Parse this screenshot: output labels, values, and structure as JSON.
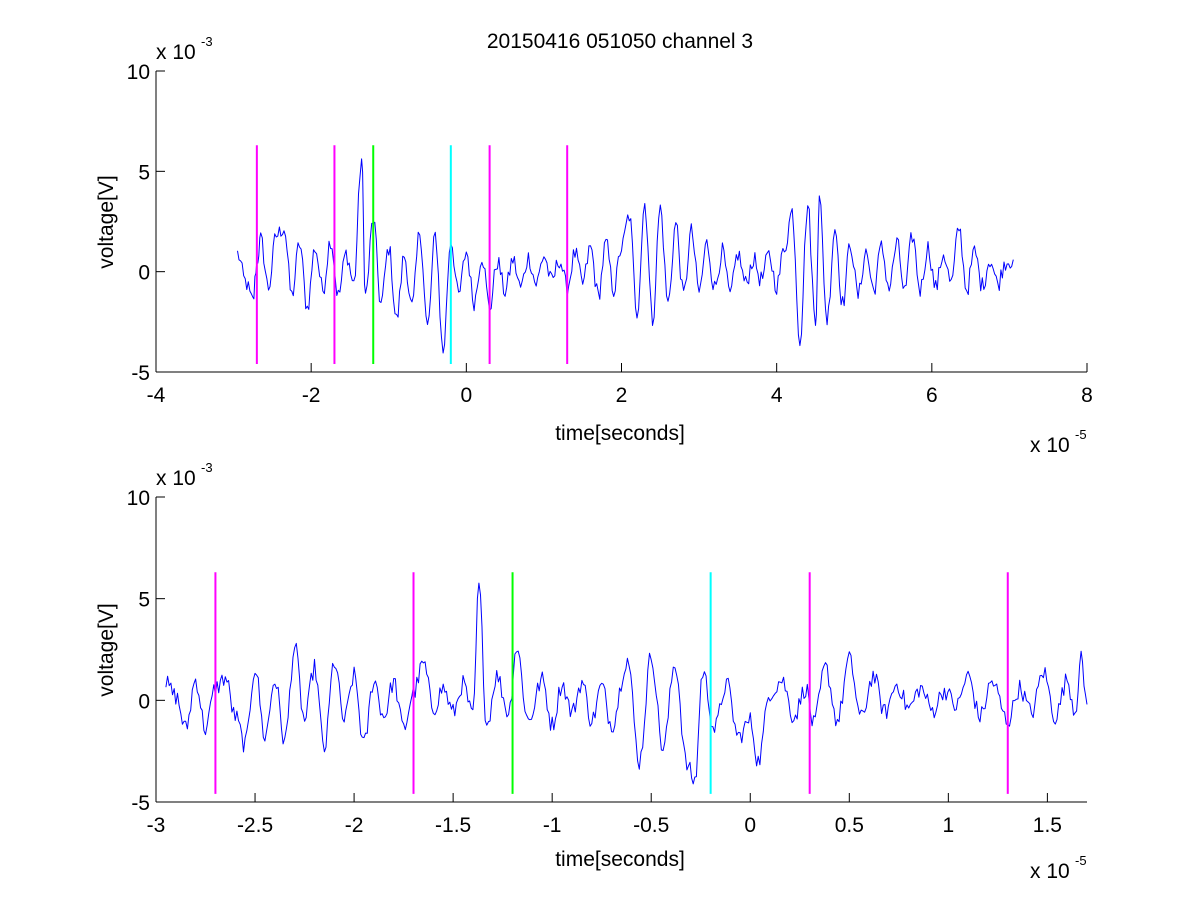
{
  "chart_data": [
    {
      "type": "line",
      "title": "20150416 051050 channel 3",
      "xlabel": "time[seconds]",
      "ylabel": "voltage[V]",
      "x_exponent": "x 10",
      "x_exponent_power": "-5",
      "y_exponent": "x 10",
      "y_exponent_power": "-3",
      "xlim": [
        -4,
        8
      ],
      "ylim": [
        -5,
        10
      ],
      "x_ticks": [
        -4,
        -2,
        0,
        2,
        4,
        6,
        8
      ],
      "x_tick_labels": [
        "-4",
        "-2",
        "0",
        "2",
        "4",
        "6",
        "8"
      ],
      "y_ticks": [
        -5,
        0,
        5,
        10
      ],
      "y_tick_labels": [
        "-5",
        "0",
        "5",
        "10"
      ],
      "grid": false,
      "box": "open",
      "series": [
        {
          "color": "#0000ff",
          "x_range": [
            -2.95,
            7.05
          ],
          "points": [
            [
              -2.95,
              0.9
            ],
            [
              -2.85,
              -0.5
            ],
            [
              -2.75,
              -1.5
            ],
            [
              -2.7,
              0.5
            ],
            [
              -2.65,
              1.6
            ],
            [
              -2.55,
              -0.8
            ],
            [
              -2.45,
              1.8
            ],
            [
              -2.35,
              2.2
            ],
            [
              -2.25,
              -1.2
            ],
            [
              -2.15,
              1.4
            ],
            [
              -2.05,
              -1.8
            ],
            [
              -1.95,
              1.2
            ],
            [
              -1.85,
              -0.9
            ],
            [
              -1.75,
              1.6
            ],
            [
              -1.65,
              -1.2
            ],
            [
              -1.55,
              0.9
            ],
            [
              -1.45,
              -0.6
            ],
            [
              -1.35,
              5.6
            ],
            [
              -1.3,
              -1.2
            ],
            [
              -1.2,
              2.6
            ],
            [
              -1.1,
              -1.6
            ],
            [
              -1.0,
              1.2
            ],
            [
              -0.9,
              -2.4
            ],
            [
              -0.8,
              0.8
            ],
            [
              -0.7,
              -1.8
            ],
            [
              -0.6,
              2.0
            ],
            [
              -0.5,
              -2.8
            ],
            [
              -0.4,
              1.8
            ],
            [
              -0.3,
              -4.0
            ],
            [
              -0.2,
              1.6
            ],
            [
              -0.1,
              -1.2
            ],
            [
              0.0,
              1.0
            ],
            [
              0.1,
              -1.5
            ],
            [
              0.2,
              0.8
            ],
            [
              0.3,
              -1.8
            ],
            [
              0.4,
              0.5
            ],
            [
              0.5,
              -1.0
            ],
            [
              0.6,
              0.6
            ],
            [
              0.7,
              -0.8
            ],
            [
              0.8,
              0.7
            ],
            [
              0.9,
              -0.6
            ],
            [
              1.0,
              0.8
            ],
            [
              1.1,
              -0.5
            ],
            [
              1.2,
              0.6
            ],
            [
              1.3,
              -0.8
            ],
            [
              1.4,
              0.9
            ],
            [
              1.5,
              -0.6
            ],
            [
              1.6,
              1.2
            ],
            [
              1.7,
              -1.2
            ],
            [
              1.8,
              1.4
            ],
            [
              1.9,
              -0.9
            ],
            [
              2.0,
              1.2
            ],
            [
              2.1,
              2.8
            ],
            [
              2.2,
              -2.0
            ],
            [
              2.3,
              3.4
            ],
            [
              2.4,
              -2.4
            ],
            [
              2.5,
              3.2
            ],
            [
              2.6,
              -1.6
            ],
            [
              2.7,
              2.4
            ],
            [
              2.8,
              -1.2
            ],
            [
              2.9,
              2.0
            ],
            [
              3.0,
              -1.0
            ],
            [
              3.1,
              1.4
            ],
            [
              3.2,
              -0.8
            ],
            [
              3.3,
              1.0
            ],
            [
              3.4,
              -1.2
            ],
            [
              3.5,
              0.9
            ],
            [
              3.6,
              -0.6
            ],
            [
              3.7,
              0.6
            ],
            [
              3.8,
              -0.4
            ],
            [
              3.9,
              0.8
            ],
            [
              4.0,
              -0.7
            ],
            [
              4.1,
              1.2
            ],
            [
              4.2,
              3.0
            ],
            [
              4.3,
              -3.4
            ],
            [
              4.4,
              3.3
            ],
            [
              4.5,
              -2.6
            ],
            [
              4.55,
              3.6
            ],
            [
              4.65,
              -2.4
            ],
            [
              4.75,
              2.2
            ],
            [
              4.85,
              -1.6
            ],
            [
              4.95,
              1.4
            ],
            [
              5.05,
              -1.2
            ],
            [
              5.15,
              1.0
            ],
            [
              5.25,
              -0.9
            ],
            [
              5.35,
              1.2
            ],
            [
              5.45,
              -0.8
            ],
            [
              5.55,
              1.4
            ],
            [
              5.65,
              -1.0
            ],
            [
              5.75,
              1.8
            ],
            [
              5.85,
              -0.9
            ],
            [
              5.95,
              1.2
            ],
            [
              6.05,
              -0.8
            ],
            [
              6.15,
              0.9
            ],
            [
              6.25,
              -0.6
            ],
            [
              6.35,
              2.2
            ],
            [
              6.45,
              -0.9
            ],
            [
              6.55,
              1.0
            ],
            [
              6.65,
              -0.7
            ],
            [
              6.75,
              0.6
            ],
            [
              6.85,
              -0.6
            ],
            [
              6.95,
              0.5
            ],
            [
              7.05,
              0.6
            ]
          ]
        }
      ],
      "vlines": [
        {
          "x": -2.7,
          "color": "#ff00ff"
        },
        {
          "x": -1.7,
          "color": "#ff00ff"
        },
        {
          "x": -1.2,
          "color": "#00ff00"
        },
        {
          "x": -0.2,
          "color": "#00ffff"
        },
        {
          "x": 0.3,
          "color": "#ff00ff"
        },
        {
          "x": 1.3,
          "color": "#ff00ff"
        }
      ],
      "vline_ylim": [
        -4.6,
        6.3
      ]
    },
    {
      "type": "line",
      "title": "",
      "xlabel": "time[seconds]",
      "ylabel": "voltage[V]",
      "x_exponent": "x 10",
      "x_exponent_power": "-5",
      "y_exponent": "x 10",
      "y_exponent_power": "-3",
      "xlim": [
        -3.0,
        1.7
      ],
      "ylim": [
        -5,
        10
      ],
      "x_ticks": [
        -3,
        -2.5,
        -2,
        -1.5,
        -1,
        -0.5,
        0,
        0.5,
        1,
        1.5
      ],
      "x_tick_labels": [
        "-3",
        "-2.5",
        "-2",
        "-1.5",
        "-1",
        "-0.5",
        "0",
        "0.5",
        "1",
        "1.5"
      ],
      "y_ticks": [
        -5,
        0,
        5,
        10
      ],
      "y_tick_labels": [
        "-5",
        "0",
        "5",
        "10"
      ],
      "grid": false,
      "box": "open",
      "series": [
        {
          "color": "#0000ff",
          "x_range": [
            -2.95,
            1.7
          ],
          "points": [
            [
              -2.95,
              0.8
            ],
            [
              -2.9,
              0.2
            ],
            [
              -2.85,
              -1.4
            ],
            [
              -2.8,
              1.0
            ],
            [
              -2.75,
              -1.4
            ],
            [
              -2.7,
              0.6
            ],
            [
              -2.65,
              1.1
            ],
            [
              -2.6,
              -0.8
            ],
            [
              -2.55,
              -2.2
            ],
            [
              -2.5,
              1.6
            ],
            [
              -2.45,
              -1.8
            ],
            [
              -2.4,
              1.0
            ],
            [
              -2.35,
              -2.0
            ],
            [
              -2.3,
              2.6
            ],
            [
              -2.25,
              -1.0
            ],
            [
              -2.2,
              1.6
            ],
            [
              -2.15,
              -2.4
            ],
            [
              -2.1,
              1.9
            ],
            [
              -2.05,
              -1.0
            ],
            [
              -2.0,
              1.2
            ],
            [
              -1.95,
              -2.2
            ],
            [
              -1.9,
              1.0
            ],
            [
              -1.85,
              -0.8
            ],
            [
              -1.8,
              0.9
            ],
            [
              -1.75,
              -1.4
            ],
            [
              -1.7,
              0.4
            ],
            [
              -1.65,
              1.8
            ],
            [
              -1.6,
              -0.4
            ],
            [
              -1.55,
              0.6
            ],
            [
              -1.5,
              -0.6
            ],
            [
              -1.45,
              0.8
            ],
            [
              -1.4,
              -0.8
            ],
            [
              -1.37,
              5.6
            ],
            [
              -1.33,
              -1.2
            ],
            [
              -1.28,
              1.2
            ],
            [
              -1.22,
              -0.6
            ],
            [
              -1.18,
              2.6
            ],
            [
              -1.12,
              -1.0
            ],
            [
              -1.05,
              1.0
            ],
            [
              -1.0,
              -1.2
            ],
            [
              -0.95,
              0.8
            ],
            [
              -0.9,
              -0.6
            ],
            [
              -0.85,
              0.9
            ],
            [
              -0.8,
              -1.0
            ],
            [
              -0.75,
              0.7
            ],
            [
              -0.7,
              -1.2
            ],
            [
              -0.62,
              2.0
            ],
            [
              -0.56,
              -3.0
            ],
            [
              -0.5,
              2.2
            ],
            [
              -0.44,
              -2.4
            ],
            [
              -0.38,
              1.8
            ],
            [
              -0.32,
              -3.2
            ],
            [
              -0.28,
              -4.0
            ],
            [
              -0.24,
              1.4
            ],
            [
              -0.18,
              -1.4
            ],
            [
              -0.12,
              0.8
            ],
            [
              -0.06,
              -1.8
            ],
            [
              0.0,
              -1.0
            ],
            [
              0.04,
              -3.0
            ],
            [
              0.1,
              0.4
            ],
            [
              0.16,
              1.0
            ],
            [
              0.22,
              -0.8
            ],
            [
              0.28,
              0.6
            ],
            [
              0.32,
              -1.2
            ],
            [
              0.38,
              1.6
            ],
            [
              0.44,
              -1.0
            ],
            [
              0.5,
              2.0
            ],
            [
              0.56,
              -0.9
            ],
            [
              0.62,
              1.2
            ],
            [
              0.68,
              -0.6
            ],
            [
              0.74,
              0.8
            ],
            [
              0.8,
              -0.4
            ],
            [
              0.86,
              0.6
            ],
            [
              0.92,
              -0.5
            ],
            [
              0.98,
              0.5
            ],
            [
              1.04,
              -0.3
            ],
            [
              1.1,
              1.2
            ],
            [
              1.16,
              -0.8
            ],
            [
              1.22,
              0.9
            ],
            [
              1.3,
              -1.0
            ],
            [
              1.36,
              0.6
            ],
            [
              1.42,
              -0.6
            ],
            [
              1.48,
              1.4
            ],
            [
              1.54,
              -0.8
            ],
            [
              1.6,
              1.0
            ],
            [
              1.64,
              -0.5
            ],
            [
              1.67,
              2.0
            ],
            [
              1.7,
              -0.2
            ]
          ]
        }
      ],
      "vlines": [
        {
          "x": -2.7,
          "color": "#ff00ff"
        },
        {
          "x": -1.7,
          "color": "#ff00ff"
        },
        {
          "x": -1.2,
          "color": "#00ff00"
        },
        {
          "x": -0.2,
          "color": "#00ffff"
        },
        {
          "x": 0.3,
          "color": "#ff00ff"
        },
        {
          "x": 1.3,
          "color": "#ff00ff"
        }
      ],
      "vline_ylim": [
        -4.6,
        6.3
      ]
    }
  ]
}
